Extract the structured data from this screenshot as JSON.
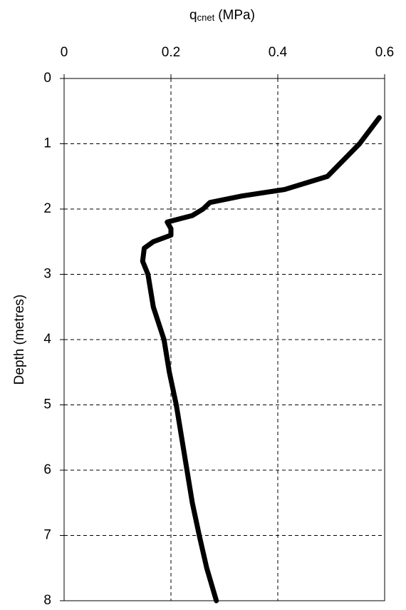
{
  "chart_data": {
    "type": "line",
    "xlabel": "q",
    "xlabel_sub": "cnet",
    "xlabel_unit": "(MPa)",
    "ylabel": "Depth (metres)",
    "xlim": [
      0,
      0.6
    ],
    "xticks": [
      0,
      0.2,
      0.4,
      0.6
    ],
    "ylim": [
      0,
      8
    ],
    "yticks": [
      0,
      1,
      2,
      3,
      4,
      5,
      6,
      7,
      8
    ],
    "y_inverted": true,
    "x_axis_position": "top",
    "grid": true,
    "series": [
      {
        "color": "#000000",
        "depth": [
          0.6,
          1.0,
          1.5,
          1.7,
          1.8,
          1.9,
          2.0,
          2.1,
          2.2,
          2.3,
          2.4,
          2.5,
          2.6,
          2.8,
          3.0,
          3.5,
          4.0,
          4.5,
          5.0,
          5.5,
          6.0,
          6.5,
          7.0,
          7.5,
          8.0
        ],
        "values": [
          0.59,
          0.553,
          0.493,
          0.413,
          0.333,
          0.273,
          0.26,
          0.24,
          0.193,
          0.2,
          0.2,
          0.167,
          0.15,
          0.147,
          0.157,
          0.167,
          0.187,
          0.197,
          0.21,
          0.22,
          0.23,
          0.24,
          0.253,
          0.267,
          0.285
        ]
      }
    ]
  }
}
